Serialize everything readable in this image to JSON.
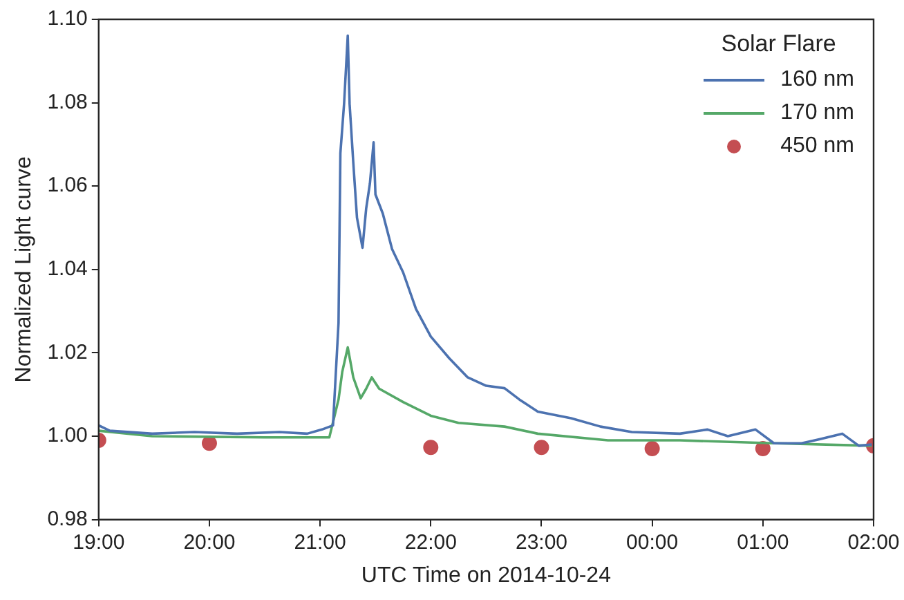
{
  "chart_data": {
    "type": "line",
    "xlabel": "UTC Time on 2014-10-24",
    "ylabel": "Normalized Light curve",
    "legend_title": "Solar Flare",
    "legend": "top right",
    "grid": false,
    "xlim": [
      "2014-10-24T19:00",
      "2014-10-25T02:00"
    ],
    "xticks": [
      {
        "value": "2014-10-24T19:00",
        "label": "19:00"
      },
      {
        "value": "2014-10-24T20:00",
        "label": "20:00"
      },
      {
        "value": "2014-10-24T21:00",
        "label": "21:00"
      },
      {
        "value": "2014-10-24T22:00",
        "label": "22:00"
      },
      {
        "value": "2014-10-24T23:00",
        "label": "23:00"
      },
      {
        "value": "2014-10-25T00:00",
        "label": "00:00"
      },
      {
        "value": "2014-10-25T01:00",
        "label": "01:00"
      },
      {
        "value": "2014-10-25T02:00",
        "label": "02:00"
      }
    ],
    "ylim": [
      0.98,
      1.1
    ],
    "yticks": [
      {
        "value": 0.98,
        "label": "0.98"
      },
      {
        "value": 1.0,
        "label": "1.00"
      },
      {
        "value": 1.02,
        "label": "1.02"
      },
      {
        "value": 1.04,
        "label": "1.04"
      },
      {
        "value": 1.06,
        "label": "1.06"
      },
      {
        "value": 1.08,
        "label": "1.08"
      },
      {
        "value": 1.1,
        "label": "1.10"
      }
    ],
    "series": [
      {
        "name": "160 nm",
        "marker": "none",
        "color": "#4c72b0",
        "x": [
          "2014-10-24T19:00",
          "2014-10-24T19:06",
          "2014-10-24T19:29",
          "2014-10-24T19:52",
          "2014-10-24T20:15",
          "2014-10-24T20:38",
          "2014-10-24T20:53",
          "2014-10-24T21:01",
          "2014-10-24T21:07",
          "2014-10-24T21:10",
          "2014-10-24T21:11",
          "2014-10-24T21:13",
          "2014-10-24T21:15",
          "2014-10-24T21:16",
          "2014-10-24T21:18",
          "2014-10-24T21:20",
          "2014-10-24T21:23",
          "2014-10-24T21:25",
          "2014-10-24T21:27",
          "2014-10-24T21:29",
          "2014-10-24T21:30",
          "2014-10-24T21:34",
          "2014-10-24T21:39",
          "2014-10-24T21:45",
          "2014-10-24T21:52",
          "2014-10-24T22:00",
          "2014-10-24T22:10",
          "2014-10-24T22:20",
          "2014-10-24T22:30",
          "2014-10-24T22:40",
          "2014-10-24T22:48",
          "2014-10-24T22:58",
          "2014-10-24T23:16",
          "2014-10-24T23:32",
          "2014-10-24T23:49",
          "2014-10-25T00:15",
          "2014-10-25T00:30",
          "2014-10-25T00:41",
          "2014-10-25T00:56",
          "2014-10-25T01:06",
          "2014-10-25T01:21",
          "2014-10-25T01:31",
          "2014-10-25T01:43",
          "2014-10-25T01:52",
          "2014-10-25T01:59"
        ],
        "values": [
          1.0026,
          1.0013,
          1.0006,
          1.001,
          1.0006,
          1.001,
          1.0006,
          1.0016,
          1.0026,
          1.0272,
          1.0679,
          1.0797,
          1.0961,
          1.0797,
          1.0656,
          1.0524,
          1.0452,
          1.0547,
          1.0606,
          1.0705,
          1.058,
          1.0534,
          1.0449,
          1.0393,
          1.0305,
          1.0239,
          1.0187,
          1.0141,
          1.0121,
          1.0115,
          1.0088,
          1.0059,
          1.0043,
          1.0023,
          1.001,
          1.0006,
          1.0016,
          1.0,
          1.0016,
          0.9983,
          0.9983,
          0.9993,
          1.0006,
          0.9977,
          0.998
        ]
      },
      {
        "name": "170 nm",
        "marker": "none",
        "color": "#55a868",
        "x": [
          "2014-10-24T19:00",
          "2014-10-24T19:29",
          "2014-10-24T20:30",
          "2014-10-24T21:05",
          "2014-10-24T21:10",
          "2014-10-24T21:12",
          "2014-10-24T21:15",
          "2014-10-24T21:18",
          "2014-10-24T21:22",
          "2014-10-24T21:25",
          "2014-10-24T21:28",
          "2014-10-24T21:32",
          "2014-10-24T21:45",
          "2014-10-24T22:00",
          "2014-10-24T22:15",
          "2014-10-24T22:40",
          "2014-10-24T22:58",
          "2014-10-24T23:36",
          "2014-10-25T00:15",
          "2014-10-25T01:06",
          "2014-10-25T01:59"
        ],
        "values": [
          1.0013,
          1.0,
          0.9997,
          0.9997,
          1.0088,
          1.0154,
          1.0213,
          1.0141,
          1.0091,
          1.0114,
          1.0141,
          1.0114,
          1.0082,
          1.0049,
          1.0032,
          1.0023,
          1.0006,
          0.999,
          0.999,
          0.9983,
          0.9977
        ]
      },
      {
        "name": "450 nm",
        "type": "scatter",
        "marker": "circle",
        "color": "#c44e52",
        "x": [
          "2014-10-24T19:00",
          "2014-10-24T20:00",
          "2014-10-24T22:00",
          "2014-10-24T23:00",
          "2014-10-25T00:00",
          "2014-10-25T01:00",
          "2014-10-25T02:00"
        ],
        "values": [
          0.999,
          0.9983,
          0.9973,
          0.9973,
          0.997,
          0.997,
          0.9977
        ]
      }
    ]
  }
}
